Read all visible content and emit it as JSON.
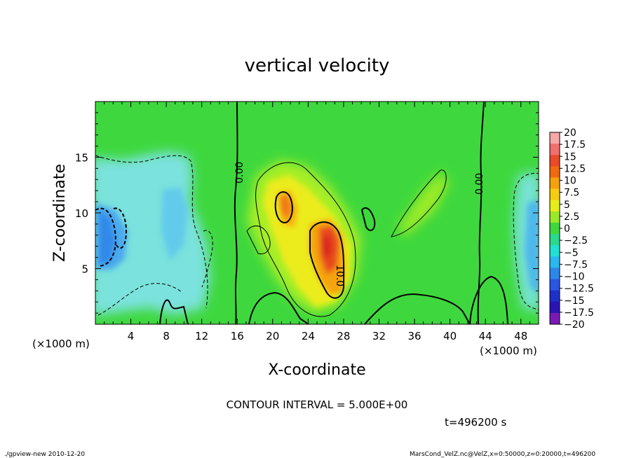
{
  "chart_data": {
    "type": "heatmap",
    "title": "vertical velocity",
    "xlabel": "X-coordinate",
    "ylabel": "Z-coordinate",
    "x_unit_left": "(×1000 m)",
    "x_unit_right": "(×1000 m)",
    "xlim": [
      0,
      50
    ],
    "ylim": [
      0,
      20
    ],
    "x_ticks": [
      4,
      8,
      12,
      16,
      20,
      24,
      28,
      32,
      36,
      40,
      44,
      48
    ],
    "y_ticks": [
      5,
      10,
      15
    ],
    "colorbar": {
      "labels": [
        "20",
        "17.5",
        "15",
        "12.5",
        "10",
        "7.5",
        "5",
        "2.5",
        "0",
        "−2.5",
        "−5",
        "−7.5",
        "−10",
        "−12.5",
        "−15",
        "−17.5",
        "−20"
      ],
      "colors": [
        "#f7a9a9",
        "#f07070",
        "#e84a2a",
        "#f06a0e",
        "#f5a10d",
        "#f5cc12",
        "#e6ee1a",
        "#9be82a",
        "#3ed83e",
        "#2ad88e",
        "#22e0d2",
        "#2ab8ee",
        "#2e86ea",
        "#2a56e2",
        "#1e30c8",
        "#2a14b4",
        "#7a1ab4"
      ]
    },
    "contour_interval": "CONTOUR INTERVAL = 5.000E+00",
    "contour_labels": [
      "0.00",
      "0.00",
      "10.0"
    ],
    "time_label": "t=496200 s",
    "footer_left": "./gpview-new   2010-12-20",
    "footer_right": "MarsCond_VelZ.nc@VelZ,x=0:50000,z=0:20000,t=496200"
  }
}
